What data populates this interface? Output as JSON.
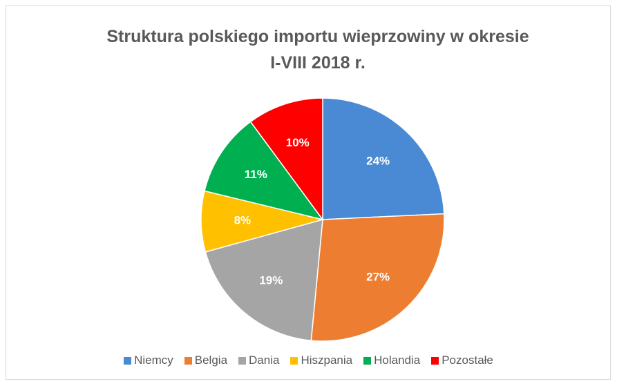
{
  "chart_data": {
    "type": "pie",
    "title": "Struktura polskiego importu wieprzowiny w okresie I-VIII 2018 r.",
    "categories": [
      "Niemcy",
      "Belgia",
      "Dania",
      "Hiszpania",
      "Holandia",
      "Pozostałe"
    ],
    "values": [
      24,
      27,
      19,
      8,
      11,
      10
    ],
    "value_labels": [
      "24%",
      "27%",
      "19%",
      "8%",
      "11%",
      "10%"
    ],
    "colors": [
      "#4a8ad4",
      "#ed7d31",
      "#a5a5a5",
      "#ffc000",
      "#00b050",
      "#ff0000"
    ],
    "legend": "bottom"
  }
}
